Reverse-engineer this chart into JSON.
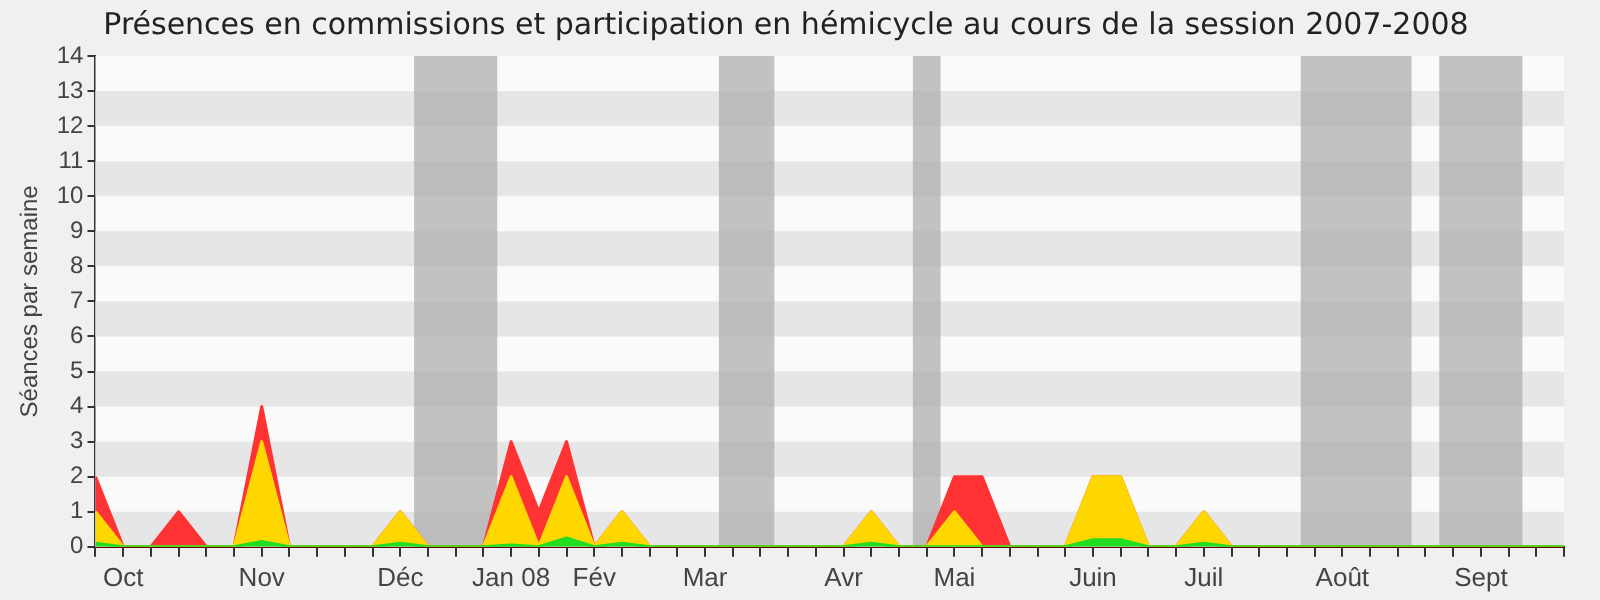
{
  "chart_data": {
    "type": "area",
    "stacked": true,
    "title": "Présences en commissions et participation en hémicycle au cours de la session 2007-2008",
    "ylabel": "Séances par semaine",
    "x": [
      "2007-09-30",
      "2007-10-07",
      "2007-10-14",
      "2007-10-21",
      "2007-10-28",
      "2007-11-04",
      "2007-11-11",
      "2007-11-18",
      "2007-11-25",
      "2007-12-02",
      "2007-12-09",
      "2007-12-16",
      "2007-12-23",
      "2007-12-30",
      "2008-01-06",
      "2008-01-13",
      "2008-01-20",
      "2008-01-27",
      "2008-02-03",
      "2008-02-10",
      "2008-02-17",
      "2008-02-24",
      "2008-03-02",
      "2008-03-09",
      "2008-03-16",
      "2008-03-23",
      "2008-03-30",
      "2008-04-06",
      "2008-04-13",
      "2008-04-20",
      "2008-04-27",
      "2008-05-04",
      "2008-05-11",
      "2008-05-18",
      "2008-05-25",
      "2008-06-01",
      "2008-06-08",
      "2008-06-15",
      "2008-06-22",
      "2008-06-29",
      "2008-07-06",
      "2008-07-13",
      "2008-07-20",
      "2008-07-27",
      "2008-08-03",
      "2008-08-10",
      "2008-08-17",
      "2008-08-24",
      "2008-08-31",
      "2008-09-07",
      "2008-09-14",
      "2008-09-21",
      "2008-09-28",
      "2008-10-05"
    ],
    "series": [
      {
        "color": "#22dd22",
        "values": [
          0.1,
          0,
          0,
          0,
          0,
          0,
          0.15,
          0,
          0,
          0,
          0,
          0.1,
          0,
          0,
          0,
          0.05,
          0,
          0.25,
          0,
          0.1,
          0,
          0,
          0,
          0,
          0,
          0,
          0,
          0,
          0.1,
          0,
          0,
          0,
          0,
          0,
          0,
          0,
          0.2,
          0.2,
          0,
          0,
          0.1,
          0,
          0,
          0,
          0,
          0,
          0,
          0,
          0,
          0,
          0,
          0,
          0,
          0
        ]
      },
      {
        "color": "#ffd700",
        "values": [
          0.9,
          0,
          0,
          0,
          0,
          0,
          2.85,
          0,
          0,
          0,
          0,
          0.9,
          0,
          0,
          0,
          1.95,
          0,
          1.75,
          0,
          0.9,
          0,
          0,
          0,
          0,
          0,
          0,
          0,
          0,
          0.9,
          0,
          0,
          1,
          0,
          0,
          0,
          0,
          1.8,
          1.8,
          0,
          0,
          0.9,
          0,
          0,
          0,
          0,
          0,
          0,
          0,
          0,
          0,
          0,
          0,
          0,
          0
        ]
      },
      {
        "color": "#ff3333",
        "values": [
          1,
          0,
          0,
          1,
          0,
          0,
          1,
          0,
          0,
          0,
          0,
          0,
          0,
          0,
          0,
          1,
          1,
          1,
          0,
          0,
          0,
          0,
          0,
          0,
          0,
          0,
          0,
          0,
          0,
          0,
          0,
          1,
          2,
          0,
          0,
          0,
          0,
          0,
          0,
          0,
          0,
          0,
          0,
          0,
          0,
          0,
          0,
          0,
          0,
          0,
          0,
          0,
          0,
          0
        ]
      }
    ],
    "xlim": [
      "2007-09-30",
      "2008-10-05"
    ],
    "xticks": [
      {
        "value": "2007-09-30",
        "label": null
      },
      {
        "value": "2007-10-07",
        "label": "Oct"
      },
      {
        "value": "2007-10-14",
        "label": null
      },
      {
        "value": "2007-10-21",
        "label": null
      },
      {
        "value": "2007-10-28",
        "label": null
      },
      {
        "value": "2007-11-04",
        "label": null
      },
      {
        "value": "2007-11-11",
        "label": "Nov"
      },
      {
        "value": "2007-11-18",
        "label": null
      },
      {
        "value": "2007-11-25",
        "label": null
      },
      {
        "value": "2007-12-02",
        "label": null
      },
      {
        "value": "2007-12-09",
        "label": null
      },
      {
        "value": "2007-12-16",
        "label": "Déc"
      },
      {
        "value": "2007-12-23",
        "label": null
      },
      {
        "value": "2007-12-30",
        "label": null
      },
      {
        "value": "2008-01-06",
        "label": null
      },
      {
        "value": "2008-01-13",
        "label": "Jan 08"
      },
      {
        "value": "2008-01-20",
        "label": null
      },
      {
        "value": "2008-01-27",
        "label": null
      },
      {
        "value": "2008-02-03",
        "label": "Fév"
      },
      {
        "value": "2008-02-10",
        "label": null
      },
      {
        "value": "2008-02-17",
        "label": null
      },
      {
        "value": "2008-02-24",
        "label": null
      },
      {
        "value": "2008-03-02",
        "label": "Mar"
      },
      {
        "value": "2008-03-09",
        "label": null
      },
      {
        "value": "2008-03-16",
        "label": null
      },
      {
        "value": "2008-03-23",
        "label": null
      },
      {
        "value": "2008-03-30",
        "label": null
      },
      {
        "value": "2008-04-06",
        "label": "Avr"
      },
      {
        "value": "2008-04-13",
        "label": null
      },
      {
        "value": "2008-04-20",
        "label": null
      },
      {
        "value": "2008-04-27",
        "label": null
      },
      {
        "value": "2008-05-04",
        "label": "Mai"
      },
      {
        "value": "2008-05-11",
        "label": null
      },
      {
        "value": "2008-05-18",
        "label": null
      },
      {
        "value": "2008-05-25",
        "label": null
      },
      {
        "value": "2008-06-01",
        "label": null
      },
      {
        "value": "2008-06-08",
        "label": "Juin"
      },
      {
        "value": "2008-06-15",
        "label": null
      },
      {
        "value": "2008-06-22",
        "label": null
      },
      {
        "value": "2008-06-29",
        "label": null
      },
      {
        "value": "2008-07-06",
        "label": "Juil"
      },
      {
        "value": "2008-07-13",
        "label": null
      },
      {
        "value": "2008-07-20",
        "label": null
      },
      {
        "value": "2008-07-27",
        "label": null
      },
      {
        "value": "2008-08-03",
        "label": null
      },
      {
        "value": "2008-08-10",
        "label": "Août"
      },
      {
        "value": "2008-08-17",
        "label": null
      },
      {
        "value": "2008-08-24",
        "label": null
      },
      {
        "value": "2008-08-31",
        "label": null
      },
      {
        "value": "2008-09-07",
        "label": null
      },
      {
        "value": "2008-09-14",
        "label": "Sept"
      },
      {
        "value": "2008-09-21",
        "label": null
      },
      {
        "value": "2008-09-28",
        "label": null
      },
      {
        "value": "2008-10-05",
        "label": null
      }
    ],
    "ylim": [
      0,
      14
    ],
    "yticks": [
      0,
      1,
      2,
      3,
      4,
      5,
      6,
      7,
      8,
      9,
      10,
      11,
      12,
      13,
      14
    ],
    "bands": [
      {
        "axis": "x",
        "from": "2007-12-19T12:00",
        "to": "2008-01-09T12:00",
        "color": "#aaaaaa"
      },
      {
        "axis": "x",
        "from": "2008-03-05T12:00",
        "to": "2008-03-19T12:00",
        "color": "#aaaaaa"
      },
      {
        "axis": "x",
        "from": "2008-04-23T12:00",
        "to": "2008-04-30T12:00",
        "color": "#aaaaaa"
      },
      {
        "axis": "x",
        "from": "2008-07-30T12:00",
        "to": "2008-08-27T12:00",
        "color": "#aaaaaa"
      },
      {
        "axis": "x",
        "from": "2008-09-03T12:00",
        "to": "2008-09-24T12:00",
        "color": "#aaaaaa"
      }
    ],
    "legend": false,
    "marker": "none"
  }
}
